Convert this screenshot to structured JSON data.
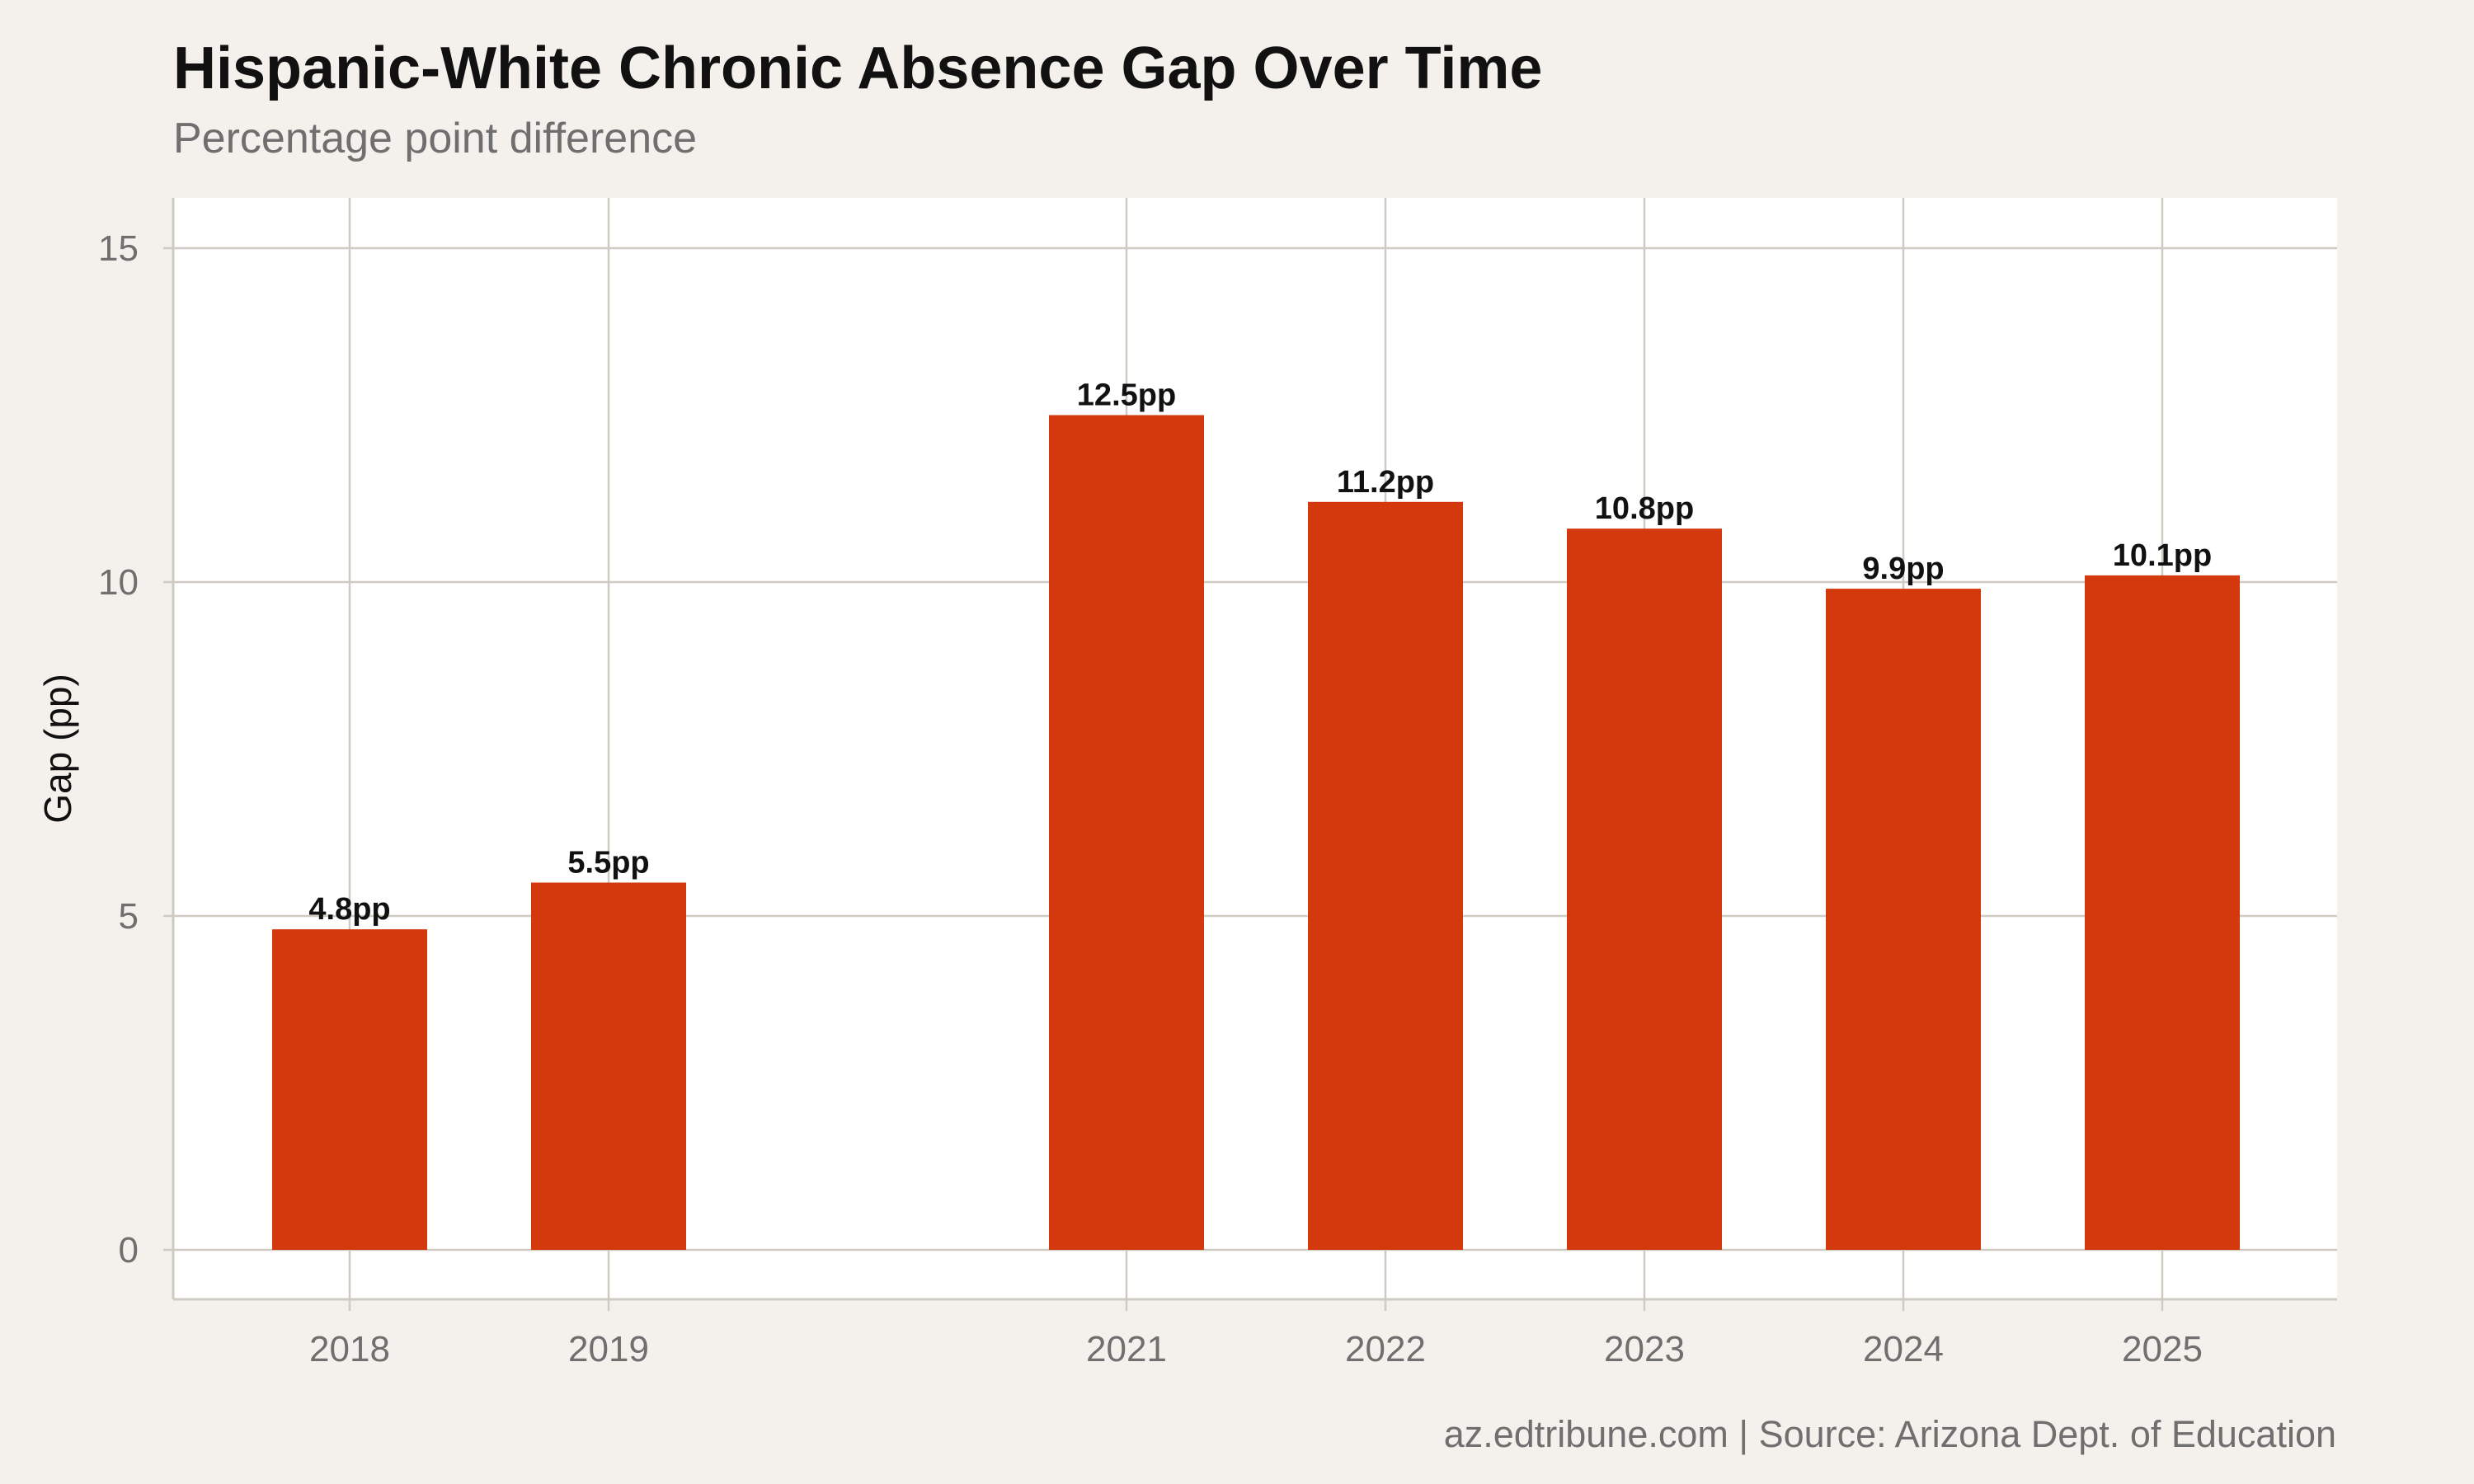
{
  "chart_data": {
    "type": "bar",
    "title": "Hispanic-White Chronic Absence Gap Over Time",
    "subtitle": "Percentage point difference",
    "ylabel": "Gap (pp)",
    "xlabel": "",
    "categories": [
      "2018",
      "2019",
      "2021",
      "2022",
      "2023",
      "2024",
      "2025"
    ],
    "x": [
      2018,
      2019,
      2021,
      2022,
      2023,
      2024,
      2025
    ],
    "values": [
      4.8,
      5.5,
      12.5,
      11.2,
      10.8,
      9.9,
      10.1
    ],
    "data_labels": [
      "4.8pp",
      "5.5pp",
      "12.5pp",
      "11.2pp",
      "10.8pp",
      "9.9pp",
      "10.1pp"
    ],
    "yticks": [
      0,
      5,
      10,
      15
    ],
    "ytick_labels": [
      "0",
      "5",
      "10",
      "15"
    ],
    "ylim": [
      0,
      15
    ],
    "xlim": [
      2017.5,
      2025.5
    ],
    "grid": true,
    "bar_color": "#d4380d",
    "caption": "az.edtribune.com | Source: Arizona Dept. of Education"
  }
}
